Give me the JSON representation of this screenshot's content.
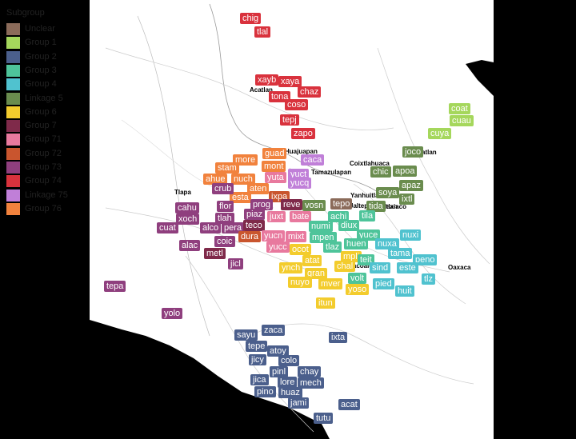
{
  "legend": {
    "title": "Subgroup",
    "items": [
      {
        "label": "Unclear",
        "color": "#8b6b5a"
      },
      {
        "label": "Group 1",
        "color": "#a5d75c"
      },
      {
        "label": "Group 2",
        "color": "#4b5f8c"
      },
      {
        "label": "Group 3",
        "color": "#4ec49a"
      },
      {
        "label": "Group 4",
        "color": "#50c2cf"
      },
      {
        "label": "Linkage 5",
        "color": "#6a8c4e"
      },
      {
        "label": "Group 6",
        "color": "#f3cc2d"
      },
      {
        "label": "Group 7",
        "color": "#7f2a4a"
      },
      {
        "label": "Group 71",
        "color": "#e8799e"
      },
      {
        "label": "Group 72",
        "color": "#c9552e"
      },
      {
        "label": "Group 73",
        "color": "#8f3f7e"
      },
      {
        "label": "Group 74",
        "color": "#d9323d"
      },
      {
        "label": "Linkage 75",
        "color": "#c07fd8"
      },
      {
        "label": "Group 76",
        "color": "#f1823d"
      }
    ]
  },
  "cities": [
    "Acatlan",
    "Huajuapan",
    "Tamazulapan",
    "Coixtlahuaca",
    "Tlapa",
    "Yanhuitlan",
    "Jaltepec",
    "Tlaxiaco",
    "Zacoalco",
    "Oaxaca",
    "atlan",
    "ixtlan"
  ],
  "varieties": [
    {
      "code": "chig",
      "group": "Group 74"
    },
    {
      "code": "tlal",
      "group": "Group 74"
    },
    {
      "code": "xayb",
      "group": "Group 74"
    },
    {
      "code": "xaya",
      "group": "Group 74"
    },
    {
      "code": "chaz",
      "group": "Group 74"
    },
    {
      "code": "tona",
      "group": "Group 74"
    },
    {
      "code": "coso",
      "group": "Group 74"
    },
    {
      "code": "tepj",
      "group": "Group 74"
    },
    {
      "code": "zapo",
      "group": "Group 74"
    },
    {
      "code": "coat",
      "group": "Group 1"
    },
    {
      "code": "cuau",
      "group": "Group 1"
    },
    {
      "code": "cuya",
      "group": "Group 1"
    },
    {
      "code": "guad",
      "group": "Group 76"
    },
    {
      "code": "more",
      "group": "Group 76"
    },
    {
      "code": "mont",
      "group": "Group 76"
    },
    {
      "code": "stam",
      "group": "Group 76"
    },
    {
      "code": "ahue",
      "group": "Group 76"
    },
    {
      "code": "nuch",
      "group": "Group 76"
    },
    {
      "code": "aten",
      "group": "Group 76"
    },
    {
      "code": "esta",
      "group": "Group 76"
    },
    {
      "code": "caca",
      "group": "Linkage 75"
    },
    {
      "code": "yuct",
      "group": "Linkage 75"
    },
    {
      "code": "yuta",
      "group": "Group 71"
    },
    {
      "code": "yucq",
      "group": "Linkage 75"
    },
    {
      "code": "crub",
      "group": "Group 73"
    },
    {
      "code": "ixpa",
      "group": "Group 72"
    },
    {
      "code": "joco",
      "group": "Linkage 5"
    },
    {
      "code": "chic",
      "group": "Linkage 5"
    },
    {
      "code": "apoa",
      "group": "Linkage 5"
    },
    {
      "code": "apaz",
      "group": "Linkage 5"
    },
    {
      "code": "soya",
      "group": "Linkage 5"
    },
    {
      "code": "ixtl",
      "group": "Linkage 5"
    },
    {
      "code": "tida",
      "group": "Linkage 5"
    },
    {
      "code": "cahu",
      "group": "Group 73"
    },
    {
      "code": "flor",
      "group": "Group 73"
    },
    {
      "code": "prog",
      "group": "Group 73"
    },
    {
      "code": "reve",
      "group": "Group 7"
    },
    {
      "code": "vosn",
      "group": "Linkage 5"
    },
    {
      "code": "tepo",
      "group": "Unclear"
    },
    {
      "code": "xoch",
      "group": "Group 73"
    },
    {
      "code": "tlah",
      "group": "Group 73"
    },
    {
      "code": "piaz",
      "group": "Group 73"
    },
    {
      "code": "juxt",
      "group": "Group 71"
    },
    {
      "code": "bate",
      "group": "Group 71"
    },
    {
      "code": "achi",
      "group": "Group 3"
    },
    {
      "code": "tila",
      "group": "Group 3"
    },
    {
      "code": "cuat",
      "group": "Group 73"
    },
    {
      "code": "alco",
      "group": "Group 73"
    },
    {
      "code": "pera",
      "group": "Group 73"
    },
    {
      "code": "teco",
      "group": "Group 7"
    },
    {
      "code": "numi",
      "group": "Group 3"
    },
    {
      "code": "diux",
      "group": "Group 3"
    },
    {
      "code": "dura",
      "group": "Group 72"
    },
    {
      "code": "yucn",
      "group": "Group 71"
    },
    {
      "code": "mixt",
      "group": "Group 71"
    },
    {
      "code": "mpen",
      "group": "Group 3"
    },
    {
      "code": "yuce",
      "group": "Group 3"
    },
    {
      "code": "nuxi",
      "group": "Group 4"
    },
    {
      "code": "coic",
      "group": "Group 73"
    },
    {
      "code": "alac",
      "group": "Group 73"
    },
    {
      "code": "yucc",
      "group": "Group 71"
    },
    {
      "code": "ocot",
      "group": "Group 6"
    },
    {
      "code": "tlaz",
      "group": "Group 3"
    },
    {
      "code": "huen",
      "group": "Group 3"
    },
    {
      "code": "nuxa",
      "group": "Group 4"
    },
    {
      "code": "metl",
      "group": "Group 7"
    },
    {
      "code": "tama",
      "group": "Group 4"
    },
    {
      "code": "mpli",
      "group": "Group 6"
    },
    {
      "code": "atat",
      "group": "Group 6"
    },
    {
      "code": "teit",
      "group": "Group 3"
    },
    {
      "code": "peno",
      "group": "Group 4"
    },
    {
      "code": "jicl",
      "group": "Group 73"
    },
    {
      "code": "chal",
      "group": "Group 6"
    },
    {
      "code": "ynch",
      "group": "Group 6"
    },
    {
      "code": "sind",
      "group": "Group 4"
    },
    {
      "code": "este",
      "group": "Group 4"
    },
    {
      "code": "gran",
      "group": "Group 6"
    },
    {
      "code": "volt",
      "group": "Group 3"
    },
    {
      "code": "nuyo",
      "group": "Group 6"
    },
    {
      "code": "mver",
      "group": "Group 6"
    },
    {
      "code": "pied",
      "group": "Group 4"
    },
    {
      "code": "tlz",
      "group": "Group 4"
    },
    {
      "code": "yoso",
      "group": "Group 6"
    },
    {
      "code": "huit",
      "group": "Group 4"
    },
    {
      "code": "tepa",
      "group": "Group 73"
    },
    {
      "code": "itun",
      "group": "Group 6"
    },
    {
      "code": "yolo",
      "group": "Group 73"
    },
    {
      "code": "zaca",
      "group": "Group 2"
    },
    {
      "code": "sayu",
      "group": "Group 2"
    },
    {
      "code": "ixta",
      "group": "Group 2"
    },
    {
      "code": "tepe",
      "group": "Group 2"
    },
    {
      "code": "atoy",
      "group": "Group 2"
    },
    {
      "code": "jicy",
      "group": "Group 2"
    },
    {
      "code": "colo",
      "group": "Group 2"
    },
    {
      "code": "pinl",
      "group": "Group 2"
    },
    {
      "code": "chay",
      "group": "Group 2"
    },
    {
      "code": "jica",
      "group": "Group 2"
    },
    {
      "code": "lore",
      "group": "Group 2"
    },
    {
      "code": "mech",
      "group": "Group 2"
    },
    {
      "code": "pino",
      "group": "Group 2"
    },
    {
      "code": "huaz",
      "group": "Group 2"
    },
    {
      "code": "jami",
      "group": "Group 2"
    },
    {
      "code": "acat",
      "group": "Group 2"
    },
    {
      "code": "tutu",
      "group": "Group 2"
    }
  ]
}
